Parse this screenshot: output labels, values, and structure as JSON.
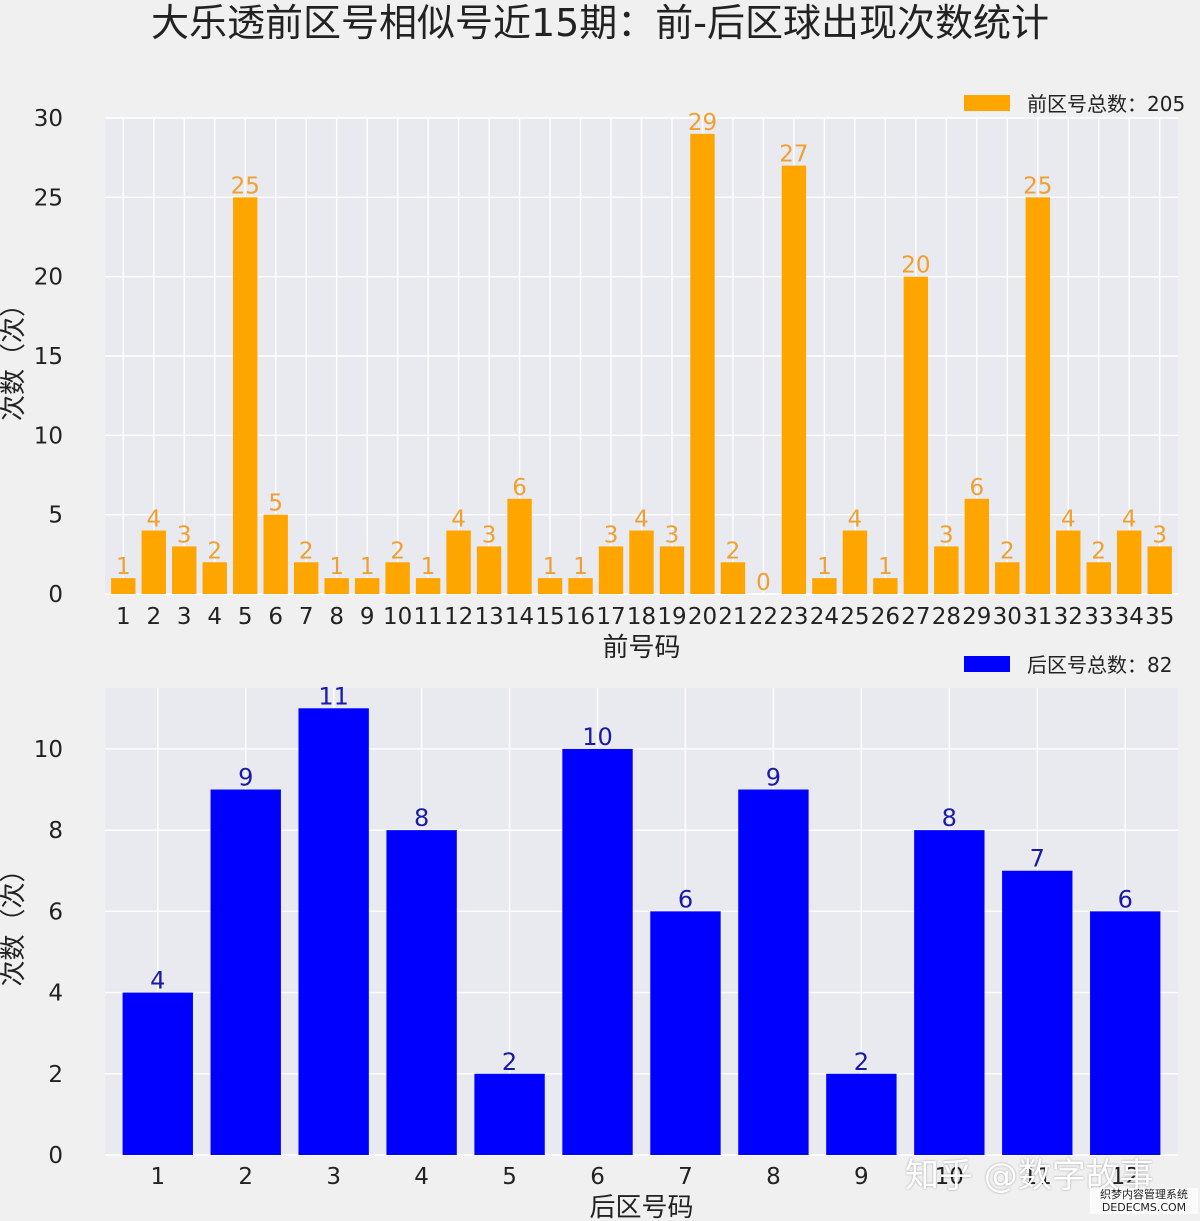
{
  "title": "大乐透前区号相似号近15期：前-后区球出现次数统计",
  "chart_data": [
    {
      "type": "bar",
      "xlabel": "前号码",
      "ylabel": "次数（次）",
      "ylim": [
        0,
        30
      ],
      "yticks": [
        0,
        5,
        10,
        15,
        20,
        25,
        30
      ],
      "categories": [
        "1",
        "2",
        "3",
        "4",
        "5",
        "6",
        "7",
        "8",
        "9",
        "10",
        "11",
        "12",
        "13",
        "14",
        "15",
        "16",
        "17",
        "18",
        "19",
        "20",
        "21",
        "22",
        "23",
        "24",
        "25",
        "26",
        "27",
        "28",
        "29",
        "30",
        "31",
        "32",
        "33",
        "34",
        "35"
      ],
      "series": [
        {
          "name": "前区号总数：205",
          "values": [
            1,
            4,
            3,
            2,
            25,
            5,
            2,
            1,
            1,
            2,
            1,
            4,
            3,
            6,
            1,
            1,
            3,
            4,
            3,
            29,
            2,
            0,
            27,
            1,
            4,
            1,
            20,
            3,
            6,
            2,
            25,
            4,
            2,
            4,
            3
          ]
        }
      ],
      "bar_color": "#FFA500",
      "label_color": "#F0A030",
      "legend_position": "top-right",
      "grid": true
    },
    {
      "type": "bar",
      "xlabel": "后区号码",
      "ylabel": "次数（次）",
      "ylim": [
        0,
        11.5
      ],
      "yticks": [
        0,
        2,
        4,
        6,
        8,
        10
      ],
      "categories": [
        "1",
        "2",
        "3",
        "4",
        "5",
        "6",
        "7",
        "8",
        "9",
        "10",
        "11",
        "12"
      ],
      "series": [
        {
          "name": "后区号总数：82",
          "values": [
            4,
            9,
            11,
            8,
            2,
            10,
            6,
            9,
            2,
            8,
            7,
            6
          ]
        }
      ],
      "bar_color": "#0000FF",
      "label_color": "#1a1aa8",
      "legend_position": "top-right",
      "grid": true
    }
  ],
  "watermarks": {
    "zhihu": "知乎 @数字故事",
    "site_line1": "织梦内容管理系统",
    "site_line2": "DEDECMS.COM"
  }
}
